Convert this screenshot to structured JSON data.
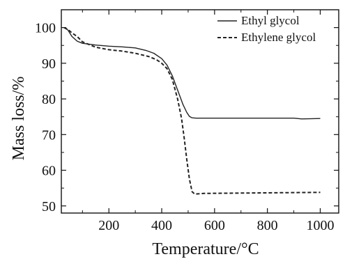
{
  "chart_data": {
    "type": "line",
    "title": "",
    "xlabel": "Temperature/°C",
    "ylabel": "Mass loss/%",
    "xlim": [
      20,
      1070
    ],
    "ylim": [
      48,
      105
    ],
    "xticks": [
      200,
      400,
      600,
      800,
      1000
    ],
    "yticks": [
      50,
      60,
      70,
      80,
      90,
      100
    ],
    "x_minor_step": 100,
    "y_minor_step": 5,
    "grid": false,
    "legend": "top-right",
    "series": [
      {
        "name": "Ethyl glycol",
        "style": "solid",
        "color": "#222222",
        "points": [
          [
            30,
            100
          ],
          [
            45,
            99.3
          ],
          [
            60,
            97.5
          ],
          [
            80,
            96.2
          ],
          [
            100,
            95.6
          ],
          [
            150,
            95.1
          ],
          [
            200,
            94.8
          ],
          [
            250,
            94.6
          ],
          [
            300,
            94.3
          ],
          [
            340,
            93.6
          ],
          [
            370,
            92.8
          ],
          [
            400,
            91.3
          ],
          [
            420,
            89.5
          ],
          [
            440,
            86.5
          ],
          [
            460,
            82.5
          ],
          [
            480,
            78.5
          ],
          [
            495,
            76.2
          ],
          [
            505,
            75.1
          ],
          [
            515,
            74.7
          ],
          [
            530,
            74.6
          ],
          [
            600,
            74.6
          ],
          [
            700,
            74.6
          ],
          [
            800,
            74.6
          ],
          [
            900,
            74.6
          ],
          [
            930,
            74.4
          ],
          [
            1000,
            74.5
          ]
        ]
      },
      {
        "name": "Ethylene glycol",
        "style": "dashed",
        "color": "#222222",
        "points": [
          [
            30,
            100
          ],
          [
            45,
            99.5
          ],
          [
            60,
            98.5
          ],
          [
            80,
            97.5
          ],
          [
            100,
            96
          ],
          [
            150,
            94.5
          ],
          [
            200,
            93.8
          ],
          [
            250,
            93.4
          ],
          [
            300,
            92.8
          ],
          [
            350,
            91.9
          ],
          [
            380,
            91
          ],
          [
            400,
            90
          ],
          [
            420,
            88.5
          ],
          [
            440,
            85.5
          ],
          [
            460,
            80
          ],
          [
            475,
            74.5
          ],
          [
            485,
            69
          ],
          [
            495,
            63
          ],
          [
            505,
            57.5
          ],
          [
            515,
            54
          ],
          [
            525,
            53.3
          ],
          [
            560,
            53.5
          ],
          [
            700,
            53.6
          ],
          [
            850,
            53.7
          ],
          [
            1000,
            53.8
          ]
        ]
      }
    ]
  }
}
